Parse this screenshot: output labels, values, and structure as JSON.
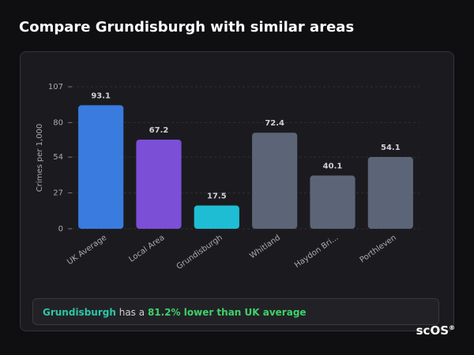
{
  "title": "Compare Grundisburgh with similar areas",
  "chart_data": {
    "type": "bar",
    "y_label": "Crimes per 1,000",
    "categories": [
      "UK Average",
      "Local Area",
      "Grundisburgh",
      "Whitland",
      "Haydon Bri...",
      "Porthleven"
    ],
    "values": [
      93.1,
      67.2,
      17.5,
      72.4,
      40.1,
      54.1
    ],
    "colors": [
      "#3a7be0",
      "#7b4fd6",
      "#1fbdd3",
      "#5b6577",
      "#5b6577",
      "#5b6577"
    ],
    "ylim": [
      0,
      107
    ],
    "yticks": [
      0,
      27,
      54,
      80,
      107
    ],
    "grid": true
  },
  "summary": {
    "place": "Grundisburgh",
    "text": "has a",
    "highlight": "81.2% lower than UK average"
  },
  "logo": {
    "text": "scOS",
    "mark": "®"
  }
}
